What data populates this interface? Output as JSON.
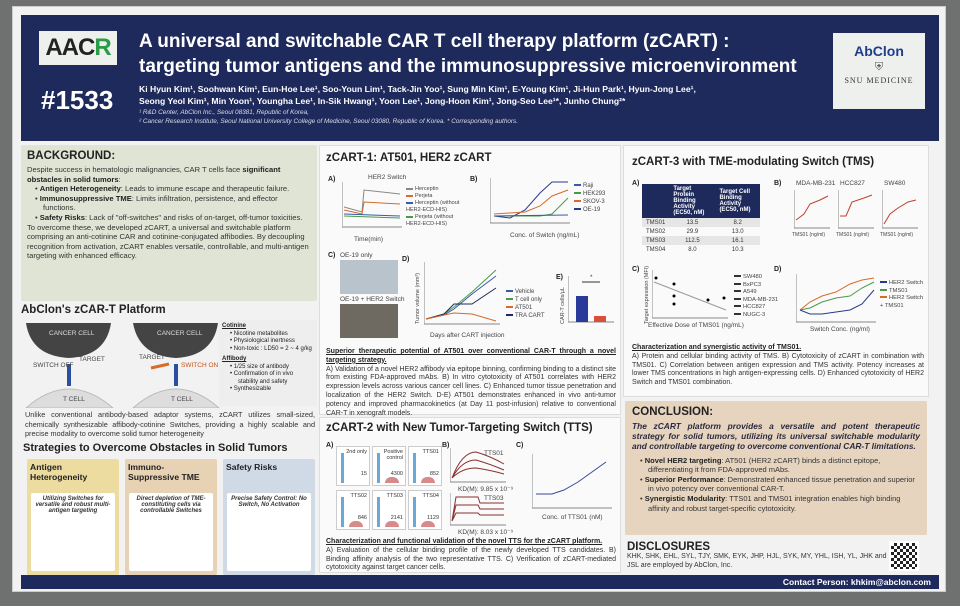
{
  "header": {
    "logo_left": "AACR",
    "poster_number": "#1533",
    "title_line1": "A universal and switchable CAR T cell therapy platform (zCART) :",
    "title_line2": "targeting tumor antigens and the immunosuppressive microenvironment",
    "authors_line1": "Ki Hyun Kim¹, Soohwan Kim¹, Eun-Hoe Lee¹, Soo-Youn Lim¹, Tack-Jin Yoo¹, Sung Min Kim¹, E-Young Kim¹, Ji-Hun Park¹, Hyun-Jong Lee¹,",
    "authors_line2": "Seong Yeol Kim¹, Min Yoon¹, Youngha Lee¹, In-Sik Hwang¹, Yoon Lee¹, Jong-Hoon Kim¹, Jong-Seo Lee¹*, Junho Chung²*",
    "affil1": "¹ R&D Center, AbClon Inc., Seoul 08381, Republic of Korea,",
    "affil2": "² Cancer Research Institute, Seoul National University College of Medicine, Seoul 03080, Republic of Korea. * Corresponding authors.",
    "logo_abclon": "AbClon",
    "logo_snu": "SNU MEDICINE"
  },
  "background": {
    "heading": "BACKGROUND:",
    "intro": "Despite success in hematologic malignancies, CAR T cells face ",
    "intro_bold": "significant obstacles in solid tumors",
    "bullets": [
      {
        "bold": "Antigen Heterogeneity",
        "text": ": Leads to immune escape and therapeutic failure."
      },
      {
        "bold": "Immunosuppressive TME",
        "text": ": Limits infiltration, persistence, and effector functions."
      },
      {
        "bold": "Safety Risks",
        "text": ": Lack of \"off-switches\" and risks of on-target, off-tumor toxicities."
      }
    ],
    "closing": "To overcome these, we developed zCART, a universal and switchable platform comprising an anti-cotinine CAR and cotinine-conjugated affibodies. By decoupling recognition from activation, zCART enables versatile, controllable, and multi-antigen targeting with enhanced efficacy."
  },
  "platform": {
    "heading": "AbClon's zCAR-T Platform",
    "labels": {
      "cancer_cell": "CANCER CELL",
      "target": "TARGET",
      "switch_off": "SWITCH OFF",
      "switch_on": "SWITCH ON",
      "t_cell": "T CELL"
    },
    "cotinine_title": "Cotinine",
    "cotinine_items": [
      "Nicotine metabolites",
      "Physiological inertness",
      "Non-toxic : LD50 = 2 ~ 4 g/kg"
    ],
    "affibody_title": "Affibody",
    "affibody_items": [
      "1/25 size of antibody",
      "Confirmation of in vivo stability and safety",
      "Synthesizable"
    ],
    "description": "Unlike conventional antibody-based adaptor systems, zCART utilizes small-sized, chemically synthesizable affibody-cotinine Switches, providing a highly scalable and precise modality to overcome solid tumor heterogeneity"
  },
  "strategies": {
    "heading": "Strategies to Overcome Obstacles in Solid Tumors",
    "cards": [
      {
        "title": "Antigen Heterogeneity",
        "text": "Utilizing Switches for versatile and robust multi-antigen targeting",
        "color": "#ecdca0"
      },
      {
        "title": "Immuno-Suppressive TME",
        "text": "Direct depletion of TME-constituting cells via controllable Switches",
        "color": "#e8d2b4"
      },
      {
        "title": "Safety Risks",
        "text": "Precise Safety Control: No Switch, No Activation",
        "color": "#cfdae6"
      }
    ]
  },
  "zcart1": {
    "heading": "zCART-1: AT501, HER2 zCART",
    "A": {
      "label": "A)",
      "bar_label": "HER2 Switch",
      "xlabel": "Time(min)",
      "ylabel": "nm",
      "legend": [
        "Herceptin",
        "Perjeta",
        "Herceptin (without HER2-ECD-HIS)",
        "Perjeta (without HER2-ECD-HIS)"
      ]
    },
    "B": {
      "label": "B)",
      "xlabel": "Conc. of Switch (ng/mL)",
      "ylabel": "Cytotoxicity (%)",
      "legend": [
        "Raji",
        "HEK293",
        "SKOV-3",
        "OE-19"
      ],
      "side": "HER2 expression"
    },
    "C": {
      "label": "C)",
      "img1": "OE-19 only",
      "img2": "OE-19 + HER2 Switch"
    },
    "D": {
      "label": "D)",
      "xlabel": "Days after CART injection",
      "ylabel": "Tumor volume (mm³)",
      "legend": [
        "Vehicle",
        "T cell only",
        "AT501",
        "TRA CART"
      ]
    },
    "E": {
      "label": "E)",
      "ylabel": "CAR-T cells/µL",
      "cats": [
        "AT501",
        "TRA CART"
      ],
      "sig": "*"
    },
    "caption_title": "Superior therapeutic potential of AT501 over conventional CAR-T through a novel targeting strategy.",
    "caption": "A) Validation of a novel HER2 affibody via epitope binning, confirming binding to a distinct site from existing FDA-approved mAbs. B) In vitro cytotoxicity of AT501 correlates with HER2 expression levels across various cancer cell lines. C) Enhanced tumor tissue penetration and localization of the HER2 Switch. D-E) AT501 demonstrates enhanced in vivo anti-tumor potency and improved pharmacokinetics (at Day 11 post-infusion) relative to conventional CAR-T in xenograft models."
  },
  "zcart2": {
    "heading": "zCART-2 with New Tumor-Targeting Switch (TTS)",
    "A": {
      "label": "A)",
      "hists": [
        {
          "name": "2nd only",
          "value": "15"
        },
        {
          "name": "Positive control",
          "value": "4300"
        },
        {
          "name": "TTS01",
          "value": "852"
        },
        {
          "name": "TTS02",
          "value": "846"
        },
        {
          "name": "TTS03",
          "value": "2141"
        },
        {
          "name": "TTS04",
          "value": "1129"
        }
      ]
    },
    "B": {
      "label": "B)",
      "s1": "TTS01",
      "kd1": "KD(M): 9.85 x 10⁻⁹",
      "s2": "TTS03",
      "kd2": "KD(M): 8.03 x 10⁻⁹"
    },
    "C": {
      "label": "C)",
      "xlabel": "Conc. of TTS01 (nM)",
      "ylabel": "Cytotoxicity (%)"
    },
    "caption_title": "Characterization and functional validation of the novel TTS for the zCART platform.",
    "caption": "A) Evaluation of the cellular binding profile of the newly developed TTS candidates. B) Binding affinity analysis of the two representative TTS. C) Verification of zCART-mediated cytotoxicity against target cancer cells."
  },
  "zcart3": {
    "heading": "zCART-3 with TME-modulating Switch (TMS)",
    "A": {
      "label": "A)",
      "columns": [
        "",
        "Target Protein Binding Activity (EC50, nM)",
        "Target Cell Binding Activity (EC50, nM)"
      ],
      "rows": [
        [
          "TMS01",
          "13.5",
          "8.2"
        ],
        [
          "TMS02",
          "29.9",
          "13.0"
        ],
        [
          "TMS03",
          "112.5",
          "16.1"
        ],
        [
          "TMS04",
          "8.0",
          "10.3"
        ]
      ]
    },
    "B": {
      "label": "B)",
      "panels": [
        "MDA-MB-231",
        "HCC827",
        "SW480"
      ],
      "xlabel": "TMS01 (ng/ml)",
      "ylabel": "Cytotoxicity (%)"
    },
    "C": {
      "label": "C)",
      "xlabel": "Effective Dose of TMS01 (ng/mL)",
      "ylabel": "Target expression (MFI)",
      "legend": [
        "SW480",
        "BxPC3",
        "A549",
        "MDA-MB-231",
        "HCC827",
        "NUGC-3"
      ]
    },
    "D": {
      "label": "D)",
      "xlabel": "Switch Conc. (ng/ml)",
      "ylabel": "Cytotoxicity (%)",
      "legend": [
        "HER2 Switch",
        "TMS01",
        "HER2 Switch + TMS01"
      ]
    },
    "caption_title": "Characterization and synergistic activity of TMS01.",
    "caption": "A) Protein and cellular binding activity of TMS. B) Cytotoxicity of zCART in combination with TMS01. C) Correlation between antigen expression and TMS activity. Potency increases at lower TMS concentrations in high antigen-expressing cells. D) Enhanced cytotoxicity of HER2 Switch and TMS01 combination."
  },
  "conclusion": {
    "heading": "CONCLUSION:",
    "lead": "The zCART platform provides a versatile and potent therapeutic strategy for solid tumors, utilizing its universal switchable modularity and controllable targeting to overcome conventional CAR-T limitations.",
    "bullets": [
      {
        "bold": "Novel HER2 targeting",
        "text": ": AT501 (HER2 zCART) binds a distinct epitope, differentiating it from FDA-approved mAbs."
      },
      {
        "bold": "Superior Performance",
        "text": ": Demonstrated enhanced tissue penetration and superior in vivo potency over conventional CAR-T."
      },
      {
        "bold": "Synergistic Modularity",
        "text": ": TTS01 and TMS01 integration enables high binding affinity and robust target-specific cytotoxicity."
      }
    ]
  },
  "disclosures": {
    "heading": "DISCLOSURES",
    "text": "KHK, SHK, EHL, SYL, TJY, SMK, EYK, JHP, HJL, SYK, MY, YHL, ISH, YL, JHK and JSL are employed by AbClon, Inc."
  },
  "footer": {
    "contact": "Contact Person: khkim@abclon.com"
  },
  "colors": {
    "navy": "#1f2a5c",
    "background_box": "#dfe4d4",
    "conclusion_box": "#e6d4bf",
    "aacr_green": "#2a9c47"
  }
}
